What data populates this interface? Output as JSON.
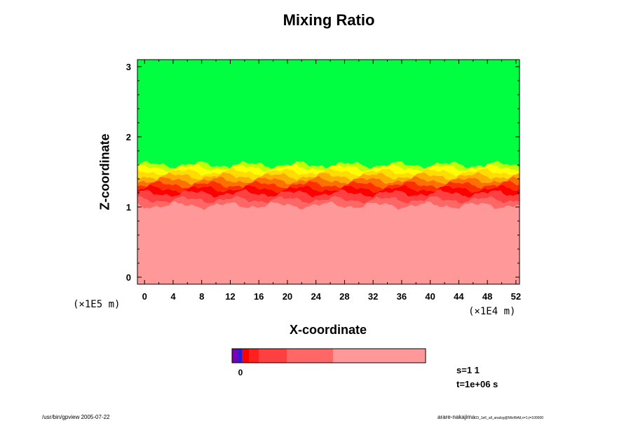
{
  "chart_data": {
    "type": "heatmap",
    "title": "Mixing Ratio",
    "xlabel": "X-coordinate",
    "ylabel": "Z-coordinate",
    "x_unit": "(×1E4 m)",
    "z_unit": "(×1E5 m)",
    "xlim": [
      -1,
      52.5
    ],
    "ylim": [
      -0.1,
      3.1
    ],
    "x_ticks": [
      0,
      4,
      8,
      12,
      16,
      20,
      24,
      28,
      32,
      36,
      40,
      44,
      48,
      52
    ],
    "y_ticks": [
      0,
      1,
      2,
      3
    ],
    "layers": [
      {
        "color": "#00ff40",
        "z_from": 1.6,
        "z_to": 3.1
      },
      {
        "color": "#c0ff00",
        "z_from": 1.56,
        "z_to": 1.6
      },
      {
        "color": "#ffff00",
        "z_from": 1.5,
        "z_to": 1.56
      },
      {
        "color": "#ffdd00",
        "z_from": 1.44,
        "z_to": 1.5
      },
      {
        "color": "#ffaa00",
        "z_from": 1.38,
        "z_to": 1.44
      },
      {
        "color": "#ff7000",
        "z_from": 1.32,
        "z_to": 1.38
      },
      {
        "color": "#ff3000",
        "z_from": 1.26,
        "z_to": 1.32
      },
      {
        "color": "#ff0000",
        "z_from": 1.19,
        "z_to": 1.26
      },
      {
        "color": "#ff4040",
        "z_from": 1.1,
        "z_to": 1.19
      },
      {
        "color": "#ff6666",
        "z_from": 1.02,
        "z_to": 1.1
      },
      {
        "color": "#ff9999",
        "z_from": -0.1,
        "z_to": 1.02
      }
    ],
    "colorbar": {
      "segments": [
        {
          "color": "#7a00b0",
          "width": 8
        },
        {
          "color": "#2020e0",
          "width": 6
        },
        {
          "color": "#ff0000",
          "width": 10
        },
        {
          "color": "#ff2020",
          "width": 14
        },
        {
          "color": "#ff4040",
          "width": 40
        },
        {
          "color": "#ff6666",
          "width": 66
        },
        {
          "color": "#ff9999",
          "width": 132
        }
      ],
      "label": "0"
    }
  },
  "info": {
    "s_label": "s=1 1",
    "t_label": "t=1e+06 s",
    "footer_left": "/usr/bin/gpview 2005-07-22",
    "footer_right_main": "arare-nakajima",
    "footer_right_sub": "03_1e6_all_analog@MixRtAll,x=1,t=100000"
  }
}
